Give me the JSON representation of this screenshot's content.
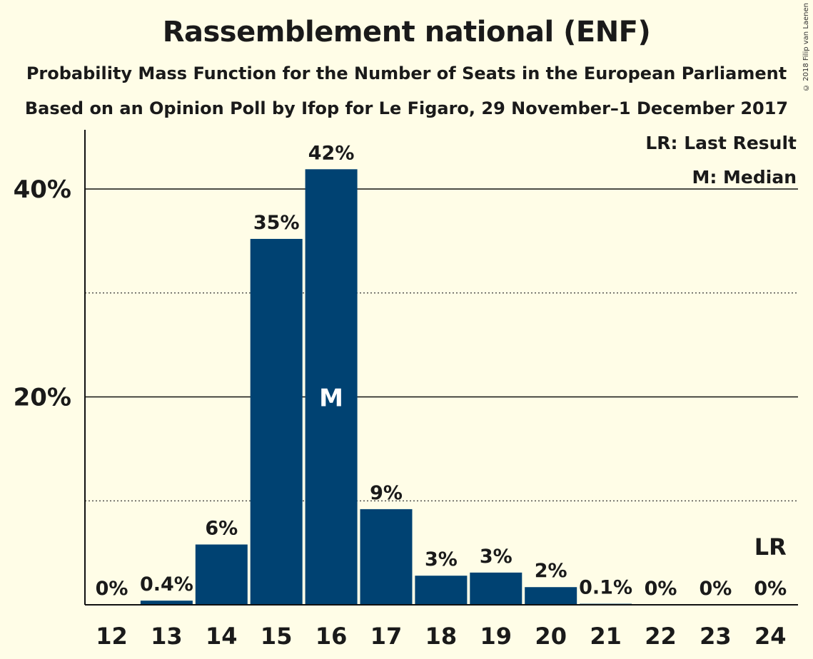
{
  "chart_data": {
    "type": "bar",
    "title": "Rassemblement national (ENF)",
    "subtitle": "Probability Mass Function for the Number of Seats in the European Parliament",
    "subtitle2": "Based on an Opinion Poll by Ifop for Le Figaro, 29 November–1 December 2017",
    "copyright": "© 2018 Filip van Laenen",
    "categories": [
      "12",
      "13",
      "14",
      "15",
      "16",
      "17",
      "18",
      "19",
      "20",
      "21",
      "22",
      "23",
      "24"
    ],
    "values": [
      0,
      0.4,
      5.8,
      35.2,
      41.9,
      9.2,
      2.8,
      3.1,
      1.7,
      0.1,
      0,
      0,
      0
    ],
    "data_labels": [
      "0%",
      "0.4%",
      "6%",
      "35%",
      "42%",
      "9%",
      "3%",
      "3%",
      "2%",
      "0.1%",
      "0%",
      "0%",
      "0%"
    ],
    "ylim": [
      0,
      45
    ],
    "yticks": [
      {
        "value": 20,
        "label": "20%"
      },
      {
        "value": 40,
        "label": "40%"
      }
    ],
    "minor_gridlines": [
      10,
      30
    ],
    "median": {
      "category": "16",
      "label": "M"
    },
    "last_result": {
      "category": "24",
      "label": "LR"
    },
    "legend": [
      "LR: Last Result",
      "M: Median"
    ],
    "legend_position": "top-right",
    "bar_color": "#004272"
  }
}
